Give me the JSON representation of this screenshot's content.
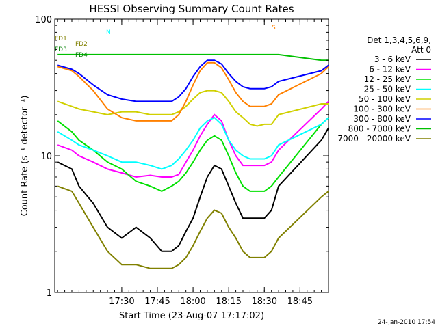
{
  "chart_data": {
    "type": "line",
    "title": "HESSI Observing Summary Count Rates",
    "xlabel": "Start Time (23-Aug-07 17:17:02)",
    "ylabel": "Count Rate (s⁻¹ detector⁻¹)",
    "yscale": "log",
    "ylim": [
      1,
      100
    ],
    "xlim_minutes": [
      17.03,
      18.95
    ],
    "y_ticks": [
      {
        "value": 1,
        "label": "1"
      },
      {
        "value": 10,
        "label": "10"
      },
      {
        "value": 100,
        "label": "100"
      }
    ],
    "x_ticks": [
      {
        "value": 17.5,
        "label": "17:30"
      },
      {
        "value": 17.75,
        "label": "17:45"
      },
      {
        "value": 18.0,
        "label": "18:00"
      },
      {
        "value": 18.25,
        "label": "18:15"
      },
      {
        "value": 18.5,
        "label": "18:30"
      },
      {
        "value": 18.75,
        "label": "18:45"
      }
    ],
    "legend": {
      "placement": "right",
      "header": [
        "Det 1,3,4,5,6,9,",
        "Att 0"
      ],
      "entries": [
        {
          "label": "3 - 6 keV",
          "color": "#000000"
        },
        {
          "label": "6 - 12 keV",
          "color": "#ff00ff"
        },
        {
          "label": "12 - 25 keV",
          "color": "#00e000"
        },
        {
          "label": "25 - 50 keV",
          "color": "#00ffff"
        },
        {
          "label": "50 - 100 keV",
          "color": "#d0d000"
        },
        {
          "label": "100 - 300 keV",
          "color": "#ff8000"
        },
        {
          "label": "300 - 800 keV",
          "color": "#0000ff"
        },
        {
          "label": "800 - 7000 keV",
          "color": "#00c000"
        },
        {
          "label": "7000 - 20000 keV",
          "color": "#808000"
        }
      ]
    },
    "series": [
      {
        "name": "3 - 6 keV",
        "color": "#000000",
        "x": [
          17.05,
          17.15,
          17.2,
          17.3,
          17.4,
          17.5,
          17.6,
          17.7,
          17.78,
          17.85,
          17.9,
          17.95,
          18.0,
          18.05,
          18.1,
          18.15,
          18.2,
          18.25,
          18.3,
          18.35,
          18.4,
          18.45,
          18.5,
          18.55,
          18.6,
          18.9,
          18.95
        ],
        "y": [
          9,
          8,
          6,
          4.5,
          3,
          2.5,
          3,
          2.5,
          2,
          2,
          2.2,
          2.8,
          3.5,
          5,
          7,
          8.5,
          8,
          6,
          4.5,
          3.5,
          3.5,
          3.5,
          3.5,
          4,
          6,
          13,
          16
        ]
      },
      {
        "name": "6 - 12 keV",
        "color": "#ff00ff",
        "x": [
          17.05,
          17.15,
          17.2,
          17.3,
          17.4,
          17.5,
          17.6,
          17.7,
          17.78,
          17.85,
          17.9,
          17.95,
          18.0,
          18.05,
          18.1,
          18.15,
          18.2,
          18.25,
          18.3,
          18.35,
          18.4,
          18.45,
          18.5,
          18.55,
          18.6,
          18.9,
          18.95
        ],
        "y": [
          12,
          11,
          10,
          9,
          8,
          7.5,
          7,
          7.2,
          7,
          7,
          7.3,
          9,
          11,
          14,
          17,
          20,
          18,
          13,
          10,
          8.5,
          8.5,
          8.5,
          8.5,
          9,
          11,
          22,
          25
        ]
      },
      {
        "name": "12 - 25 keV",
        "color": "#00e000",
        "x": [
          17.05,
          17.15,
          17.2,
          17.3,
          17.4,
          17.5,
          17.6,
          17.7,
          17.78,
          17.85,
          17.9,
          17.95,
          18.0,
          18.05,
          18.1,
          18.15,
          18.2,
          18.25,
          18.3,
          18.35,
          18.4,
          18.45,
          18.5,
          18.55,
          18.6,
          18.9,
          18.95
        ],
        "y": [
          18,
          15,
          13,
          11,
          9,
          8,
          6.5,
          6,
          5.5,
          6,
          6.5,
          7.5,
          9,
          11,
          13,
          14,
          13,
          10,
          7.5,
          6,
          5.5,
          5.5,
          5.5,
          6,
          7,
          17,
          19
        ]
      },
      {
        "name": "25 - 50 keV",
        "color": "#00ffff",
        "x": [
          17.05,
          17.15,
          17.2,
          17.3,
          17.4,
          17.5,
          17.6,
          17.7,
          17.78,
          17.85,
          17.9,
          17.95,
          18.0,
          18.05,
          18.1,
          18.15,
          18.2,
          18.25,
          18.3,
          18.35,
          18.4,
          18.45,
          18.5,
          18.55,
          18.6,
          18.9,
          18.95
        ],
        "y": [
          15,
          13,
          12,
          11,
          10,
          9,
          9,
          8.5,
          8,
          8.5,
          9.5,
          11,
          13,
          16,
          18,
          19,
          17,
          13,
          11,
          10,
          9.5,
          9.5,
          9.5,
          10,
          12,
          17,
          19
        ]
      },
      {
        "name": "50 - 100 keV",
        "color": "#d0d000",
        "x": [
          17.05,
          17.15,
          17.2,
          17.3,
          17.4,
          17.5,
          17.6,
          17.7,
          17.78,
          17.85,
          17.9,
          17.95,
          18.0,
          18.05,
          18.1,
          18.15,
          18.2,
          18.25,
          18.3,
          18.35,
          18.4,
          18.45,
          18.5,
          18.55,
          18.6,
          18.9,
          18.95
        ],
        "y": [
          25,
          23,
          22,
          21,
          20,
          21,
          21,
          20,
          20,
          20,
          21,
          23,
          26,
          29,
          30,
          30,
          29,
          25,
          21,
          19,
          17,
          16.5,
          17,
          17,
          20,
          24,
          24
        ]
      },
      {
        "name": "100 - 300 keV",
        "color": "#ff8000",
        "x": [
          17.05,
          17.15,
          17.2,
          17.3,
          17.4,
          17.5,
          17.6,
          17.7,
          17.78,
          17.85,
          17.9,
          17.95,
          18.0,
          18.05,
          18.1,
          18.15,
          18.2,
          18.25,
          18.3,
          18.35,
          18.4,
          18.45,
          18.5,
          18.55,
          18.6,
          18.9,
          18.95
        ],
        "y": [
          45,
          42,
          38,
          30,
          22,
          19,
          18,
          18,
          18,
          18,
          20,
          25,
          33,
          42,
          48,
          48,
          44,
          36,
          29,
          25,
          23,
          23,
          23,
          24,
          28,
          40,
          45
        ]
      },
      {
        "name": "300 - 800 keV",
        "color": "#0000ff",
        "x": [
          17.05,
          17.15,
          17.2,
          17.3,
          17.4,
          17.5,
          17.6,
          17.7,
          17.78,
          17.85,
          17.9,
          17.95,
          18.0,
          18.05,
          18.1,
          18.15,
          18.2,
          18.25,
          18.3,
          18.35,
          18.4,
          18.45,
          18.5,
          18.55,
          18.6,
          18.9,
          18.95
        ],
        "y": [
          46,
          43,
          40,
          33,
          28,
          26,
          25,
          25,
          25,
          25,
          27,
          31,
          38,
          45,
          50,
          50,
          47,
          40,
          35,
          32,
          31,
          31,
          31,
          32,
          35,
          42,
          46
        ]
      },
      {
        "name": "800 - 7000 keV",
        "color": "#00c000",
        "x": [
          17.05,
          17.15,
          17.2,
          17.3,
          17.4,
          17.5,
          17.6,
          17.7,
          17.78,
          17.85,
          17.9,
          17.95,
          18.0,
          18.05,
          18.1,
          18.15,
          18.2,
          18.25,
          18.3,
          18.35,
          18.4,
          18.45,
          18.5,
          18.55,
          18.6,
          18.9,
          18.95
        ],
        "y": [
          55,
          55,
          55,
          55,
          55,
          55,
          55,
          55,
          55,
          55,
          55,
          55,
          55,
          55,
          55,
          55,
          55,
          55,
          55,
          55,
          55,
          55,
          55,
          55,
          55,
          50,
          50
        ]
      },
      {
        "name": "7000 - 20000 keV",
        "color": "#808000",
        "x": [
          17.05,
          17.15,
          17.2,
          17.3,
          17.4,
          17.5,
          17.6,
          17.7,
          17.78,
          17.85,
          17.9,
          17.95,
          18.0,
          18.05,
          18.1,
          18.15,
          18.2,
          18.25,
          18.3,
          18.35,
          18.4,
          18.45,
          18.5,
          18.55,
          18.6,
          18.9,
          18.95
        ],
        "y": [
          6,
          5.5,
          4.5,
          3,
          2,
          1.6,
          1.6,
          1.5,
          1.5,
          1.5,
          1.6,
          1.8,
          2.2,
          2.8,
          3.5,
          4,
          3.8,
          3,
          2.5,
          2,
          1.8,
          1.8,
          1.8,
          2,
          2.5,
          5,
          5.5
        ]
      }
    ],
    "flag_labels": [
      {
        "text": "N",
        "color": "#00ffff"
      },
      {
        "text": "S",
        "color": "#ff8000"
      },
      {
        "text": "FD1",
        "color": "#808000"
      },
      {
        "text": "FD2",
        "color": "#808000"
      },
      {
        "text": "FD3",
        "color": "#008000"
      },
      {
        "text": "FD4",
        "color": "#008000"
      }
    ],
    "timestamp": "24-Jan-2010 17:54"
  }
}
